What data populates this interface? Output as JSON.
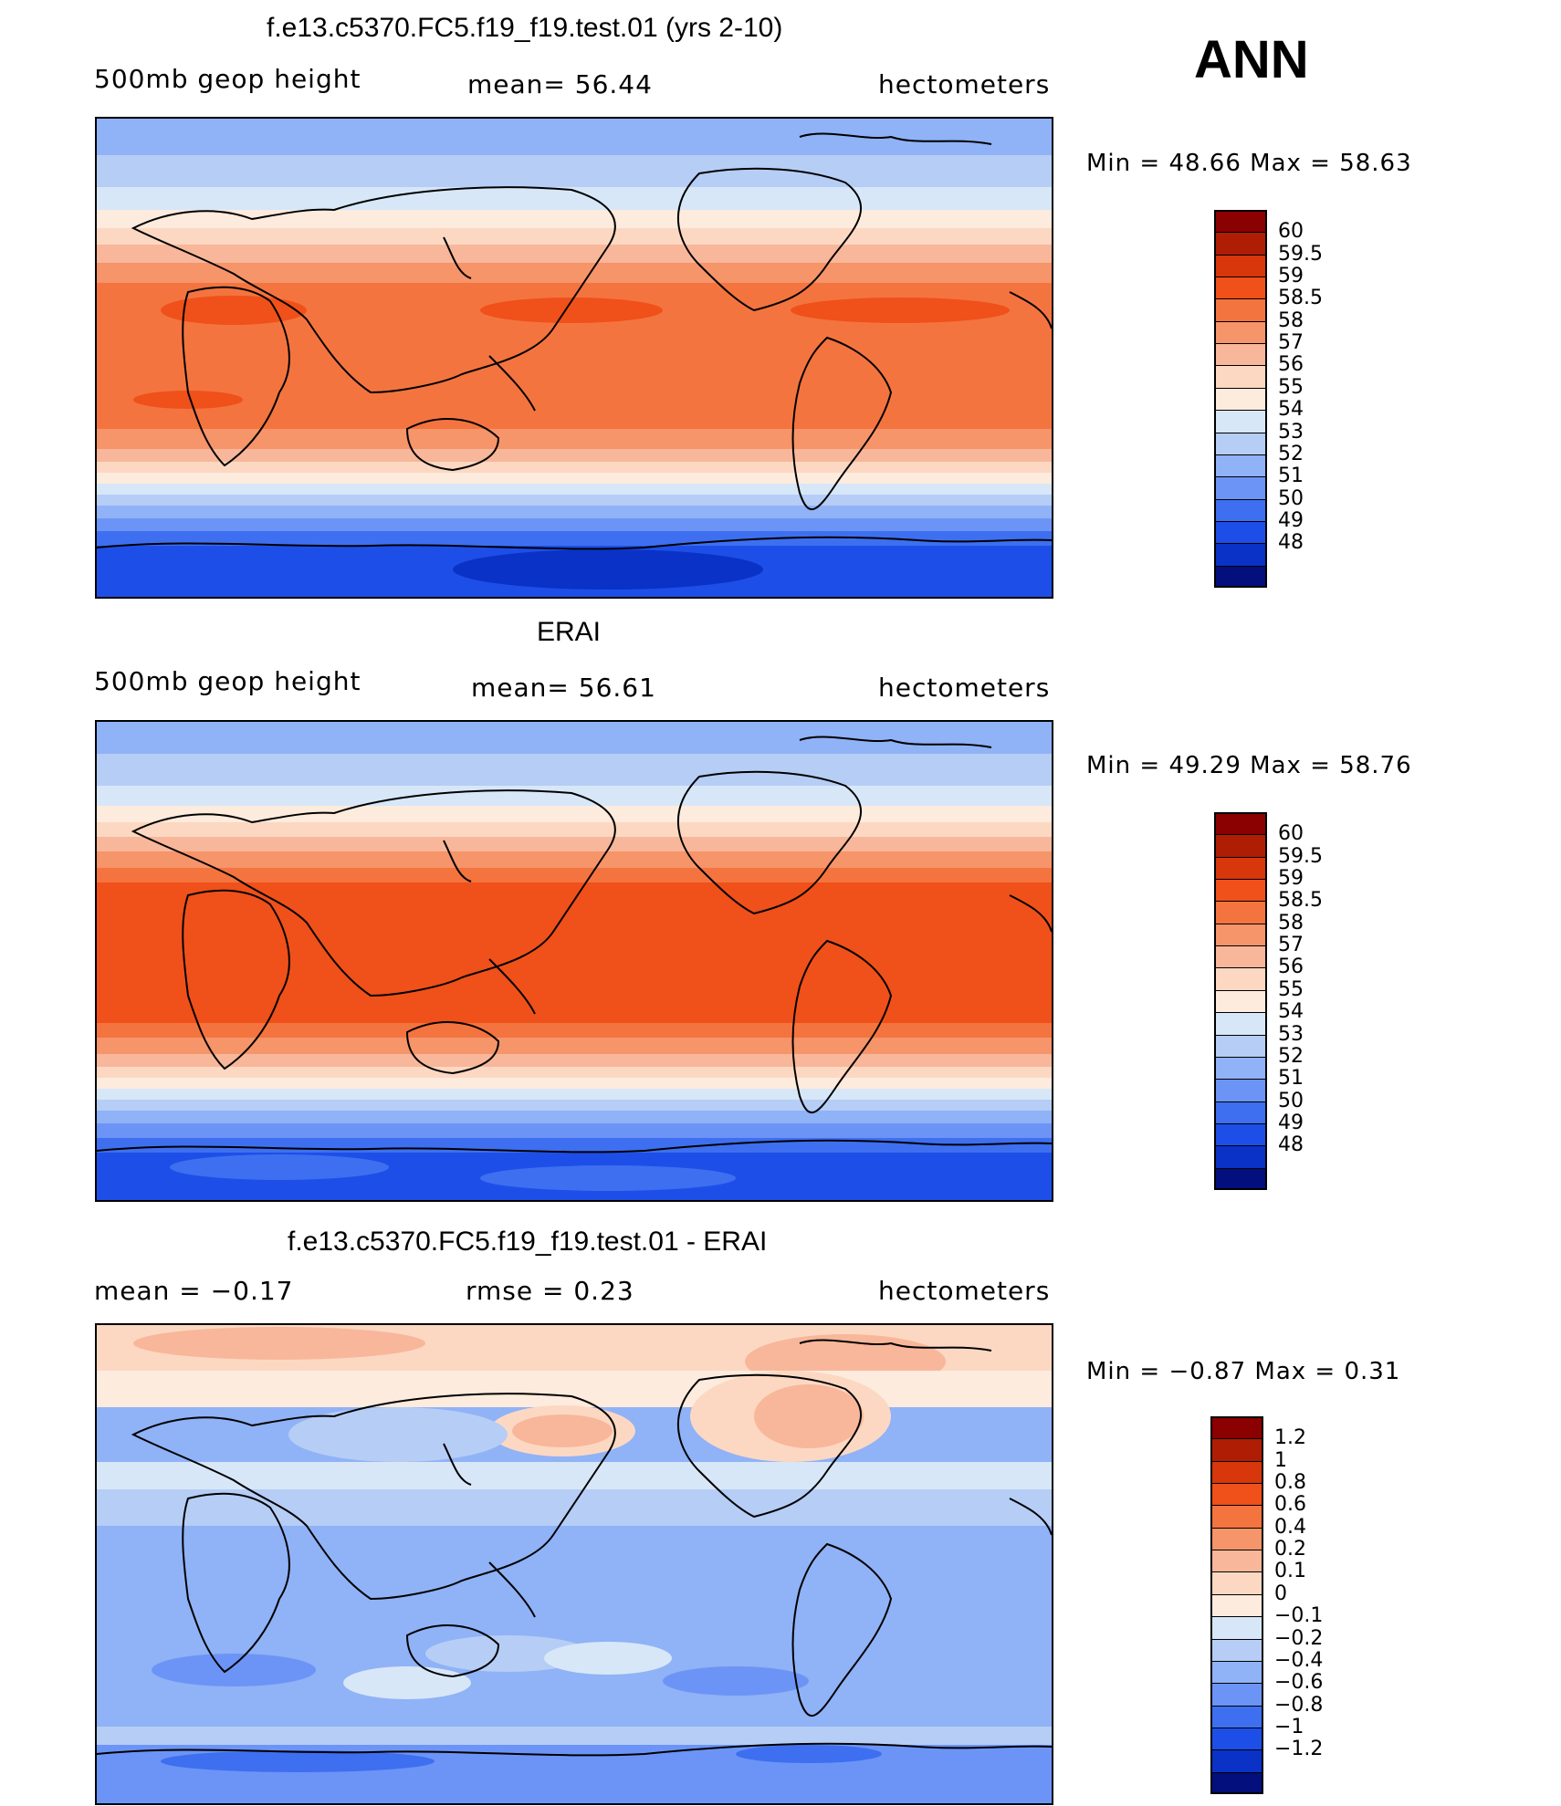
{
  "season": "ANN",
  "panels": [
    {
      "title": "f.e13.c5370.FC5.f19_f19.test.01 (yrs 2-10)",
      "left_label": "500mb  geop  height",
      "center_label": "mean=   56.44",
      "right_label": "hectometers",
      "minmax": "Min  =    48.66  Max  =    58.63",
      "colorbar": {
        "labels": [
          "60",
          "59.5",
          "59",
          "58.5",
          "58",
          "57",
          "56",
          "55",
          "54",
          "53",
          "52",
          "51",
          "50",
          "49",
          "48"
        ],
        "colors": [
          "#8b0000",
          "#b01d05",
          "#d8360b",
          "#f0501a",
          "#f4743f",
          "#f6946a",
          "#f8b79a",
          "#fcd8c2",
          "#fdebdd",
          "#d7e7f8",
          "#b6cdf6",
          "#90b2f6",
          "#6c94f6",
          "#3d6ff0",
          "#1d4fe8",
          "#0a32c6",
          "#020f7c"
        ]
      }
    },
    {
      "title": "ERAI",
      "left_label": "500mb  geop  height",
      "center_label": "mean=   56.61",
      "right_label": "hectometers",
      "minmax": "Min  =    49.29  Max  =    58.76",
      "colorbar": {
        "labels": [
          "60",
          "59.5",
          "59",
          "58.5",
          "58",
          "57",
          "56",
          "55",
          "54",
          "53",
          "52",
          "51",
          "50",
          "49",
          "48"
        ],
        "colors": [
          "#8b0000",
          "#b01d05",
          "#d8360b",
          "#f0501a",
          "#f4743f",
          "#f6946a",
          "#f8b79a",
          "#fcd8c2",
          "#fdebdd",
          "#d7e7f8",
          "#b6cdf6",
          "#90b2f6",
          "#6c94f6",
          "#3d6ff0",
          "#1d4fe8",
          "#0a32c6",
          "#020f7c"
        ]
      }
    },
    {
      "title": "f.e13.c5370.FC5.f19_f19.test.01 - ERAI",
      "left_label": "mean  =    −0.17",
      "center_label": "rmse  =     0.23",
      "right_label": "hectometers",
      "minmax": "Min  =    −0.87  Max  =     0.31",
      "colorbar": {
        "labels": [
          "1.2",
          "1",
          "0.8",
          "0.6",
          "0.4",
          "0.2",
          "0.1",
          "0",
          "−0.1",
          "−0.2",
          "−0.4",
          "−0.6",
          "−0.8",
          "−1",
          "−1.2"
        ],
        "colors": [
          "#8b0000",
          "#b01d05",
          "#d8360b",
          "#f0501a",
          "#f4743f",
          "#f6946a",
          "#f8b79a",
          "#fcd8c2",
          "#fdebdd",
          "#d7e7f8",
          "#b6cdf6",
          "#90b2f6",
          "#6c94f6",
          "#3d6ff0",
          "#1d4fe8",
          "#0a32c6",
          "#020f7c"
        ]
      }
    }
  ]
}
